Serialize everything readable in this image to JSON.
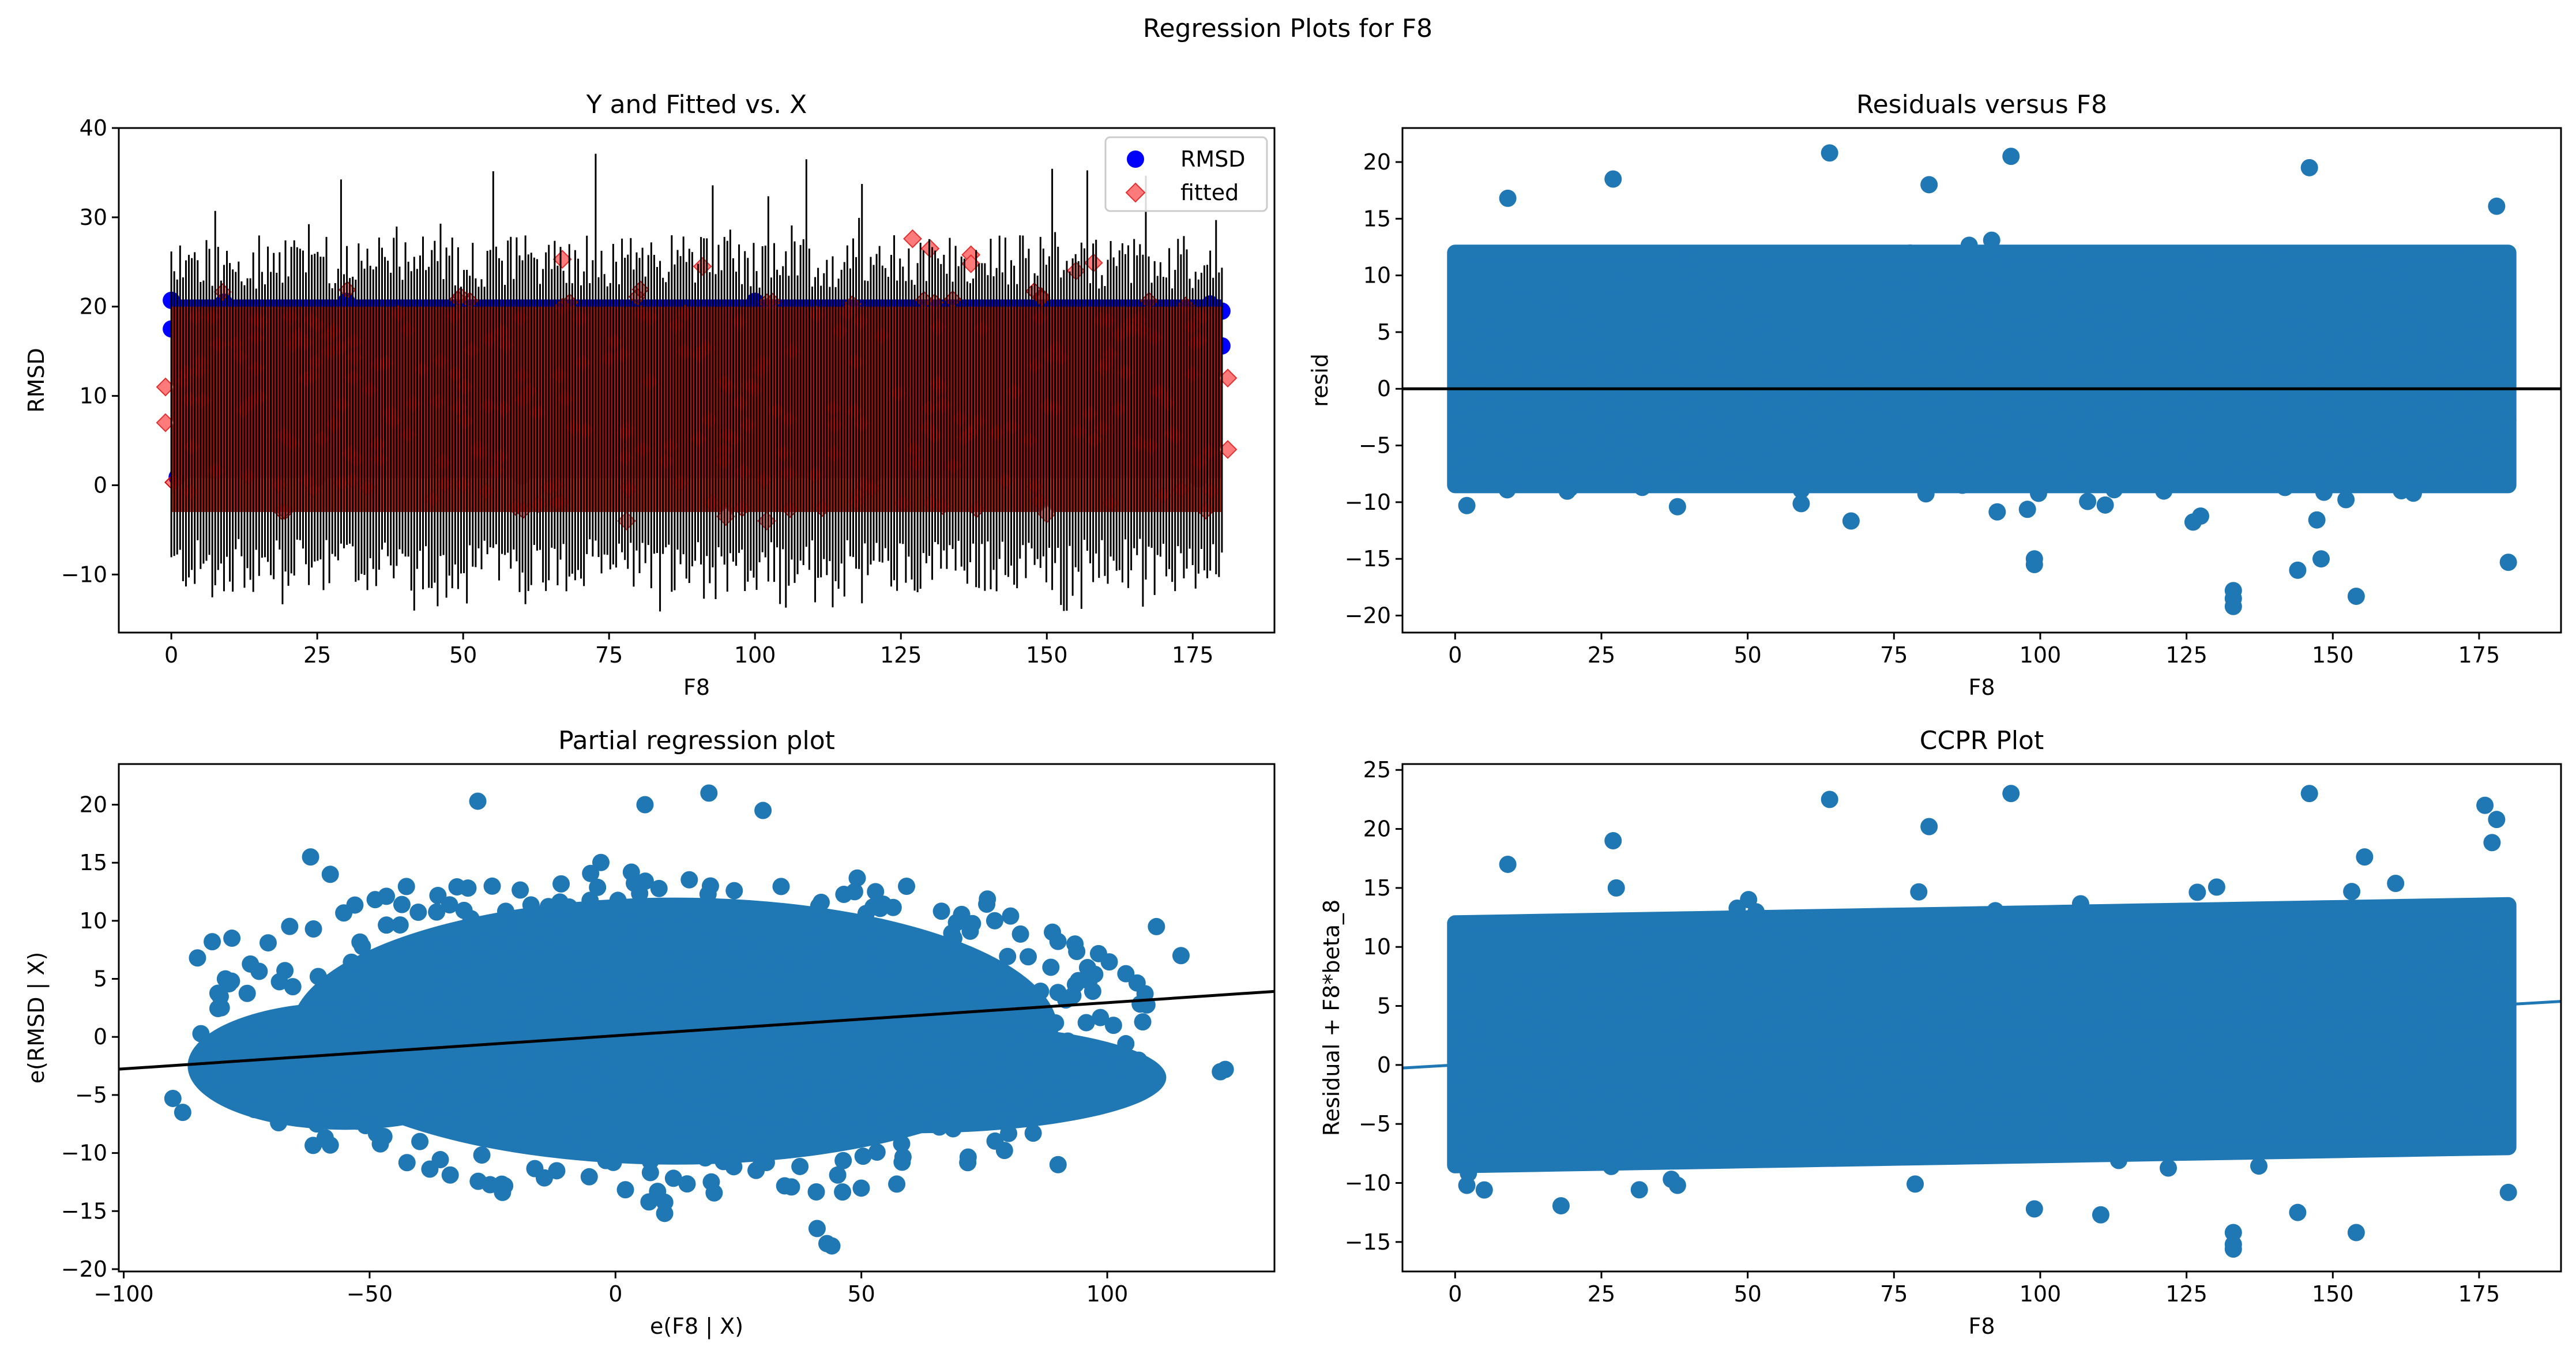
{
  "figure": {
    "suptitle": "Regression Plots for F8"
  },
  "chart_data": [
    {
      "type": "scatter",
      "title": "Y and Fitted vs. X",
      "xlabel": "F8",
      "ylabel": "RMSD",
      "xlim": [
        -9,
        189
      ],
      "ylim": [
        -16.5,
        40
      ],
      "xticks": [
        0,
        25,
        50,
        75,
        100,
        125,
        150,
        175
      ],
      "yticks": [
        -10,
        0,
        10,
        20,
        30,
        40
      ],
      "legend": {
        "placement": "top-right",
        "entries": [
          "RMSD",
          "fitted"
        ]
      },
      "series": [
        {
          "name": "RMSD",
          "marker": "circle",
          "color": "#0000ff",
          "x_range": [
            0,
            180
          ],
          "y_band": [
            0.8,
            20.8
          ],
          "sample_points": [
            [
              0,
              20.7
            ],
            [
              0,
              17.5
            ],
            [
              2,
              13.5
            ],
            [
              9,
              20.5
            ],
            [
              30,
              20.6
            ],
            [
              100,
              20.6
            ],
            [
              150,
              19.8
            ],
            [
              178,
              20.3
            ],
            [
              180,
              19.5
            ],
            [
              180,
              15.6
            ],
            [
              1,
              0.9
            ],
            [
              25,
              0.8
            ],
            [
              60,
              1.0
            ],
            [
              120,
              1.1
            ],
            [
              176,
              0.7
            ]
          ]
        },
        {
          "name": "fitted",
          "marker": "diamond",
          "color": "#ff0000",
          "x_range": [
            0,
            180
          ],
          "y_band": [
            -3,
            22
          ],
          "sample_points": [
            [
              67,
              25.3
            ],
            [
              91,
              24.5
            ],
            [
              127,
              27.6
            ],
            [
              130,
              26.5
            ],
            [
              137,
              25.8
            ],
            [
              137,
              24.8
            ],
            [
              155,
              24.0
            ],
            [
              158,
              24.9
            ],
            [
              -1,
              11.0
            ],
            [
              -1,
              7.0
            ],
            [
              181,
              12.0
            ],
            [
              181,
              4.0
            ],
            [
              78,
              -4.0
            ],
            [
              95,
              -3.5
            ],
            [
              102,
              -4.0
            ],
            [
              150,
              -3.2
            ]
          ]
        }
      ],
      "errorbars": {
        "color": "#000000",
        "x_range": [
          0,
          180
        ],
        "typical_low": -12,
        "typical_high": 28,
        "extreme_low": -14.2,
        "extreme_high": 37.5
      }
    },
    {
      "type": "scatter",
      "title": "Residuals versus F8",
      "xlabel": "F8",
      "ylabel": "resid",
      "xlim": [
        -9,
        189
      ],
      "ylim": [
        -21.5,
        23
      ],
      "xticks": [
        0,
        25,
        50,
        75,
        100,
        125,
        150,
        175
      ],
      "yticks": [
        -20,
        -15,
        -10,
        -5,
        0,
        5,
        10,
        15,
        20
      ],
      "color": "#1f77b4",
      "x_range": [
        0,
        180
      ],
      "y_band": [
        -10,
        13
      ],
      "hline": {
        "y": 0,
        "color": "#000000"
      },
      "sample_points": [
        [
          64,
          20.8
        ],
        [
          95,
          20.5
        ],
        [
          27,
          18.5
        ],
        [
          9,
          16.8
        ],
        [
          146,
          19.5
        ],
        [
          81,
          18.0
        ],
        [
          178,
          16.1
        ],
        [
          2,
          -10.3
        ],
        [
          38,
          -10.4
        ],
        [
          133,
          -17.8
        ],
        [
          133,
          -18.5
        ],
        [
          133,
          -19.2
        ],
        [
          154,
          -18.3
        ],
        [
          99,
          -15.0
        ],
        [
          99,
          -15.5
        ],
        [
          180,
          -15.3
        ],
        [
          148,
          -15.0
        ],
        [
          144,
          -16.0
        ]
      ]
    },
    {
      "type": "scatter",
      "title": "Partial regression plot",
      "xlabel": "e(F8 | X)",
      "ylabel": "e(RMSD | X)",
      "xlim": [
        -101,
        134
      ],
      "ylim": [
        -20.2,
        23.5
      ],
      "xticks": [
        -100,
        -50,
        0,
        50,
        100
      ],
      "yticks": [
        -20,
        -15,
        -10,
        -5,
        0,
        5,
        10,
        15,
        20
      ],
      "color": "#1f77b4",
      "fit_line": {
        "slope": 0.0285,
        "intercept": 0.1,
        "color": "#000000"
      },
      "sample_points": [
        [
          19,
          21.0
        ],
        [
          -28,
          20.3
        ],
        [
          6,
          20.0
        ],
        [
          30,
          19.5
        ],
        [
          -62,
          15.5
        ],
        [
          -58,
          14.0
        ],
        [
          -82,
          8.2
        ],
        [
          -85,
          6.8
        ],
        [
          -90,
          -5.3
        ],
        [
          -88,
          -6.5
        ],
        [
          124,
          -2.8
        ],
        [
          123,
          -3.0
        ],
        [
          115,
          7.0
        ],
        [
          110,
          9.5
        ],
        [
          43,
          -17.8
        ],
        [
          44,
          -18.0
        ],
        [
          41,
          -16.5
        ],
        [
          10,
          -15.2
        ],
        [
          -78,
          8.5
        ],
        [
          90,
          -11.0
        ]
      ]
    },
    {
      "type": "scatter",
      "title": "CCPR Plot",
      "xlabel": "F8",
      "ylabel": "Residual + F8*beta_8",
      "xlim": [
        -9,
        189
      ],
      "ylim": [
        -17.5,
        25.5
      ],
      "xticks": [
        0,
        25,
        50,
        75,
        100,
        125,
        150,
        175
      ],
      "yticks": [
        -15,
        -10,
        -5,
        0,
        5,
        10,
        15,
        20,
        25
      ],
      "color": "#1f77b4",
      "x_range": [
        0,
        180
      ],
      "fit_line": {
        "slope": 0.0285,
        "intercept": 0.0,
        "color": "#1f77b4"
      },
      "sample_points": [
        [
          64,
          22.5
        ],
        [
          95,
          23.0
        ],
        [
          146,
          23.0
        ],
        [
          9,
          17.0
        ],
        [
          27,
          19.0
        ],
        [
          81,
          20.2
        ],
        [
          178,
          20.8
        ],
        [
          176,
          22.0
        ],
        [
          2,
          -10.2
        ],
        [
          38,
          -10.2
        ],
        [
          133,
          -14.2
        ],
        [
          133,
          -15.2
        ],
        [
          133,
          -15.6
        ],
        [
          154,
          -14.2
        ],
        [
          99,
          -12.2
        ],
        [
          180,
          -10.8
        ],
        [
          144,
          -12.5
        ]
      ]
    }
  ]
}
